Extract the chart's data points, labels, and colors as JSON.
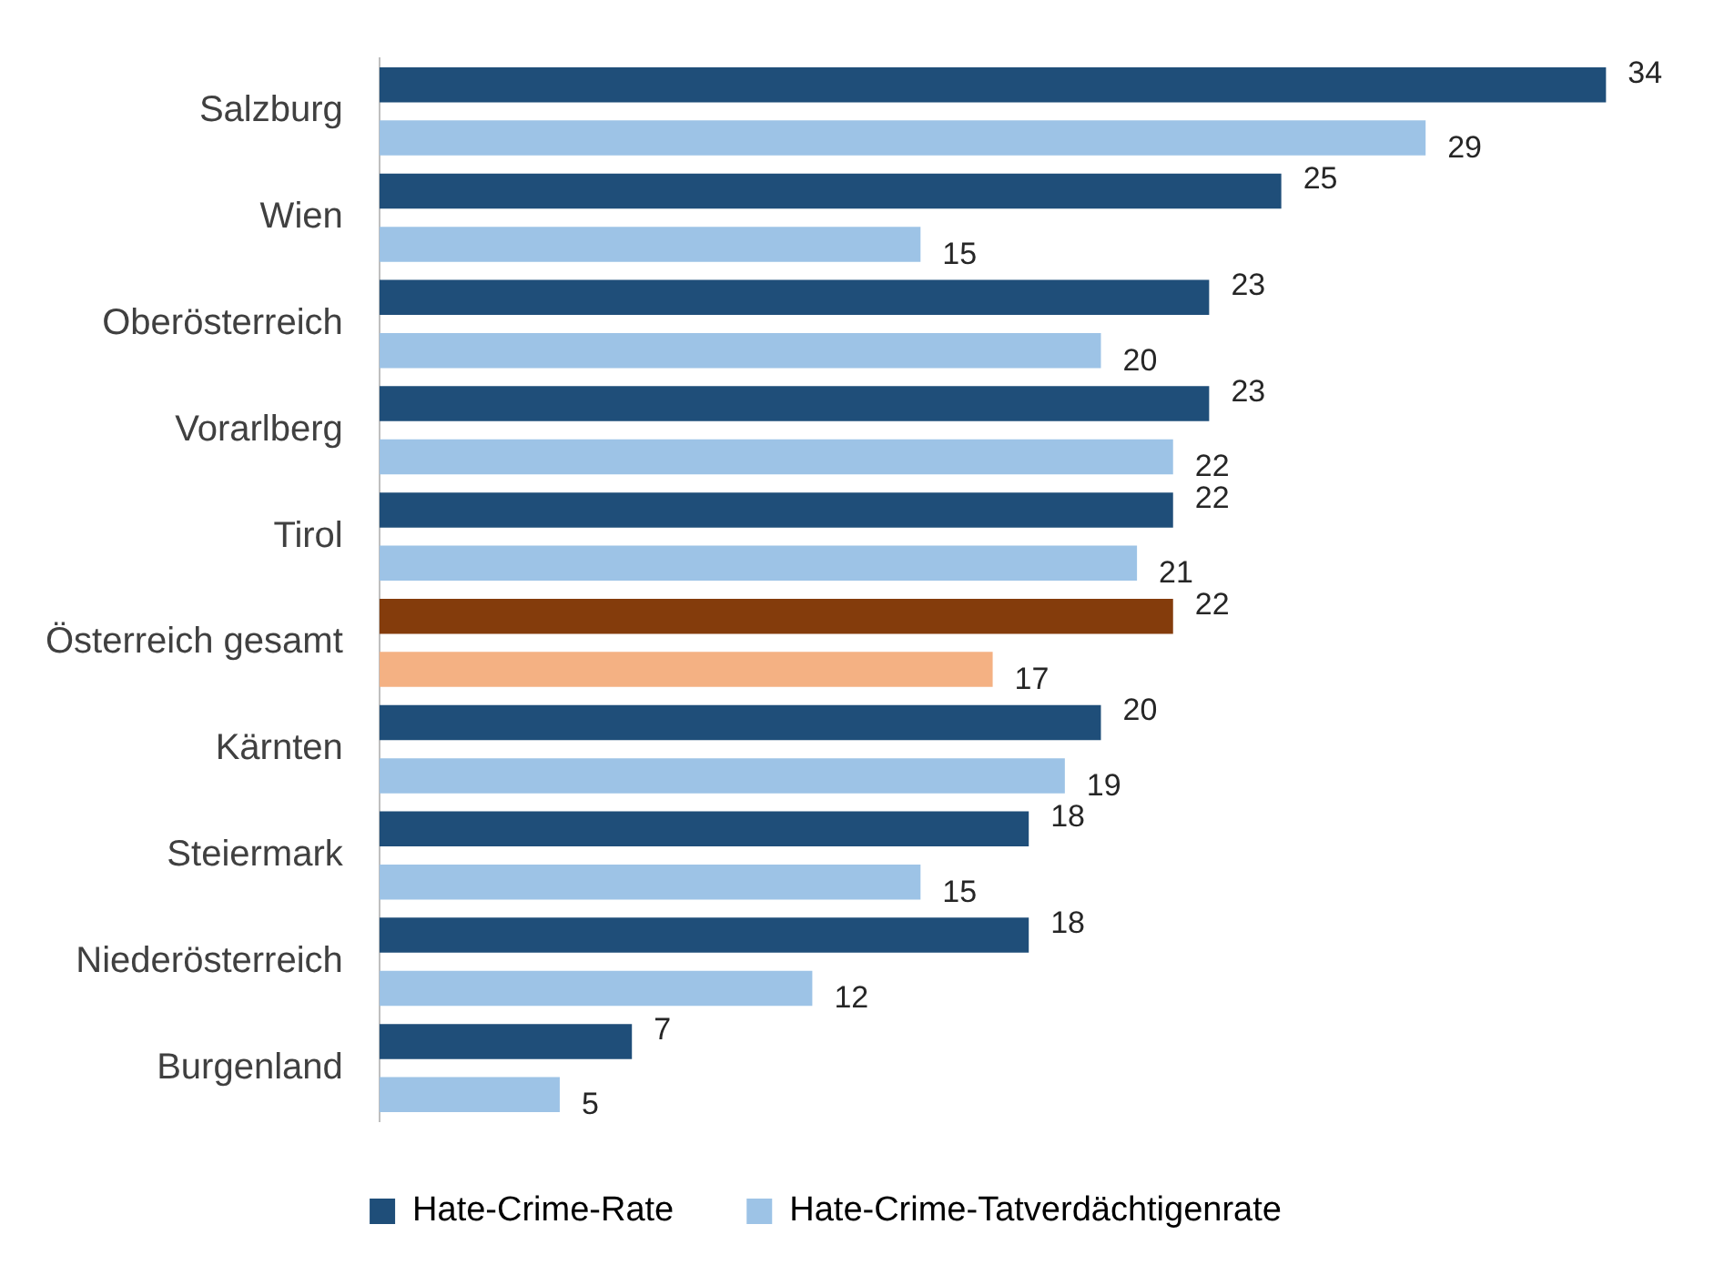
{
  "chart_data": {
    "type": "bar",
    "orientation": "horizontal",
    "categories": [
      "Salzburg",
      "Wien",
      "Oberösterreich",
      "Vorarlberg",
      "Tirol",
      "Österreich gesamt",
      "Kärnten",
      "Steiermark",
      "Niederösterreich",
      "Burgenland"
    ],
    "series": [
      {
        "name": "Hate-Crime-Rate",
        "color": "#1f4e79",
        "colors": [
          "#1f4e79",
          "#1f4e79",
          "#1f4e79",
          "#1f4e79",
          "#1f4e79",
          "#843c0c",
          "#1f4e79",
          "#1f4e79",
          "#1f4e79",
          "#1f4e79"
        ],
        "values": [
          34,
          25,
          23,
          23,
          22,
          22,
          20,
          18,
          18,
          7
        ]
      },
      {
        "name": "Hate-Crime-Tatverdächtigenrate",
        "color": "#9dc3e6",
        "colors": [
          "#9dc3e6",
          "#9dc3e6",
          "#9dc3e6",
          "#9dc3e6",
          "#9dc3e6",
          "#f4b183",
          "#9dc3e6",
          "#9dc3e6",
          "#9dc3e6",
          "#9dc3e6"
        ],
        "values": [
          29,
          15,
          20,
          22,
          21,
          17,
          19,
          15,
          12,
          5
        ]
      }
    ],
    "tick_labels": "y",
    "data_labels": true,
    "legend": "bottom"
  }
}
